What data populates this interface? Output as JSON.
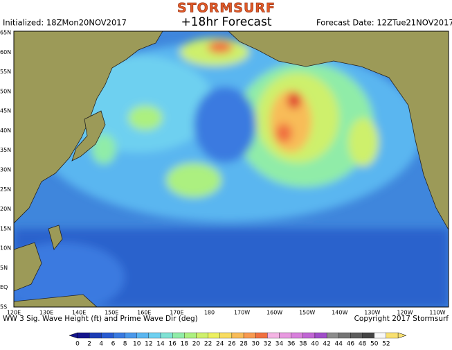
{
  "header": {
    "logo": "STORMSURF",
    "title": "+18hr Forecast",
    "initialized": "Initialized: 18ZMon20NOV2017",
    "forecast_date": "Forecast Date: 12ZTue21NOV2017"
  },
  "lat_labels": [
    "65N",
    "60N",
    "55N",
    "50N",
    "45N",
    "40N",
    "35N",
    "30N",
    "25N",
    "20N",
    "15N",
    "10N",
    "5N",
    "EQ",
    "5S"
  ],
  "lon_labels": [
    "120E",
    "130E",
    "140E",
    "150E",
    "160E",
    "170E",
    "180",
    "170W",
    "160W",
    "150W",
    "140W",
    "130W",
    "120W",
    "110W"
  ],
  "footer": {
    "caption": "WW 3 Sig. Wave Height (ft) and Prime Wave Dir (deg)",
    "copyright": "Copyright 2017 Stormsurf"
  },
  "colorbar": [
    {
      "value": 0,
      "color": "#14148c"
    },
    {
      "value": 2,
      "color": "#1c3cb4"
    },
    {
      "value": 4,
      "color": "#285ad0"
    },
    {
      "value": 6,
      "color": "#3a7ae0"
    },
    {
      "value": 8,
      "color": "#4a98ea"
    },
    {
      "value": 10,
      "color": "#5ab6f0"
    },
    {
      "value": 12,
      "color": "#6ed0f0"
    },
    {
      "value": 14,
      "color": "#80e2d4"
    },
    {
      "value": 16,
      "color": "#90eca8"
    },
    {
      "value": 18,
      "color": "#acf080"
    },
    {
      "value": 20,
      "color": "#cef06c"
    },
    {
      "value": 22,
      "color": "#ecf060"
    },
    {
      "value": 24,
      "color": "#f8dc60"
    },
    {
      "value": 26,
      "color": "#f8bc58"
    },
    {
      "value": 28,
      "color": "#f89a50"
    },
    {
      "value": 30,
      "color": "#f07040"
    },
    {
      "value": 32,
      "color": "#f4b4e4"
    },
    {
      "value": 34,
      "color": "#e89ae0"
    },
    {
      "value": 36,
      "color": "#d880dc"
    },
    {
      "value": 38,
      "color": "#c066d4"
    },
    {
      "value": 40,
      "color": "#a04ec8"
    },
    {
      "value": 42,
      "color": "#8c8c8c"
    },
    {
      "value": 44,
      "color": "#747474"
    },
    {
      "value": 46,
      "color": "#5c5c5c"
    },
    {
      "value": 48,
      "color": "#444444"
    },
    {
      "value": 50,
      "color": "#f8f8f8"
    },
    {
      "value": 52,
      "color": "#f8e070"
    }
  ]
}
